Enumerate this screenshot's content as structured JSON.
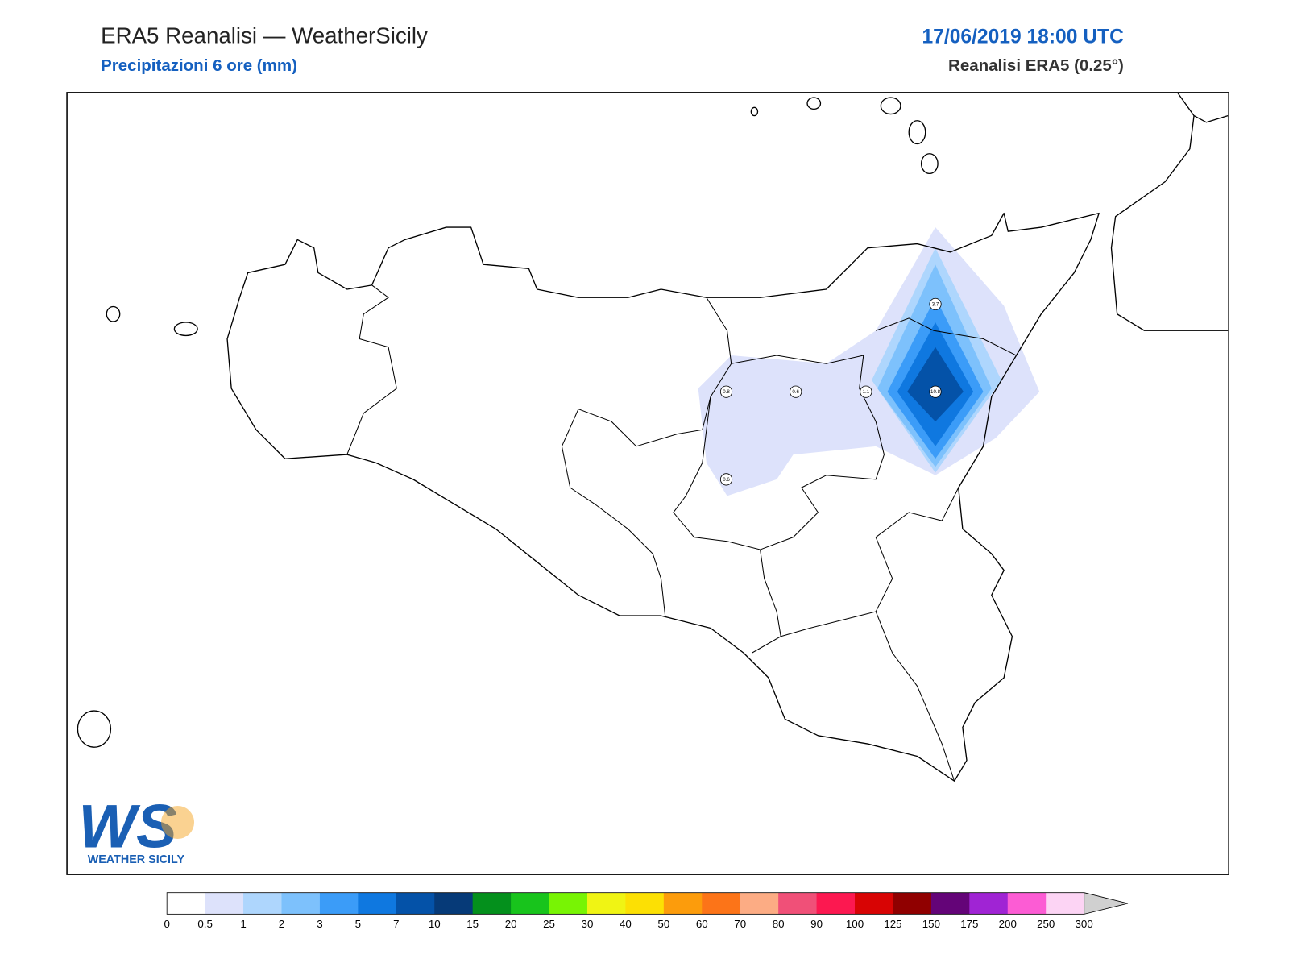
{
  "header": {
    "title": "ERA5 Reanalisi — WeatherSicily",
    "subtitle": "Precipitazioni 6 ore (mm)",
    "date": "17/06/2019 18:00 UTC",
    "model": "Reanalisi ERA5 (0.25°)"
  },
  "points": [
    {
      "x": 879,
      "y": 474,
      "value": 0.8
    },
    {
      "x": 963,
      "y": 474,
      "value": 0.6
    },
    {
      "x": 1048,
      "y": 474,
      "value": 1.1
    },
    {
      "x": 1132,
      "y": 368,
      "value": 3.7
    },
    {
      "x": 1132,
      "y": 474,
      "value": 10.8
    },
    {
      "x": 879,
      "y": 580,
      "value": 0.6
    }
  ],
  "colorbar": {
    "ticks": [
      0,
      0.5,
      1,
      2,
      3,
      5,
      7,
      10,
      15,
      20,
      25,
      30,
      40,
      50,
      60,
      70,
      80,
      90,
      100,
      125,
      150,
      175,
      200,
      250,
      300
    ],
    "colors": [
      "#ffffff",
      "#dde2fb",
      "#aed6fd",
      "#7dc1fc",
      "#3b9cf8",
      "#0f78e0",
      "#0452a8",
      "#063a78",
      "#04901c",
      "#18c41c",
      "#78f404",
      "#f0f414",
      "#fce004",
      "#fc9c0c",
      "#fc7418",
      "#fcac84",
      "#f05078",
      "#fc1850",
      "#d80404",
      "#900000",
      "#640478",
      "#a024d4",
      "#fc5cd4",
      "#fcd4f4"
    ],
    "extend_color": "#d0d0d0"
  },
  "logo": {
    "mark": "WS",
    "name": "WEATHER SICILY"
  }
}
